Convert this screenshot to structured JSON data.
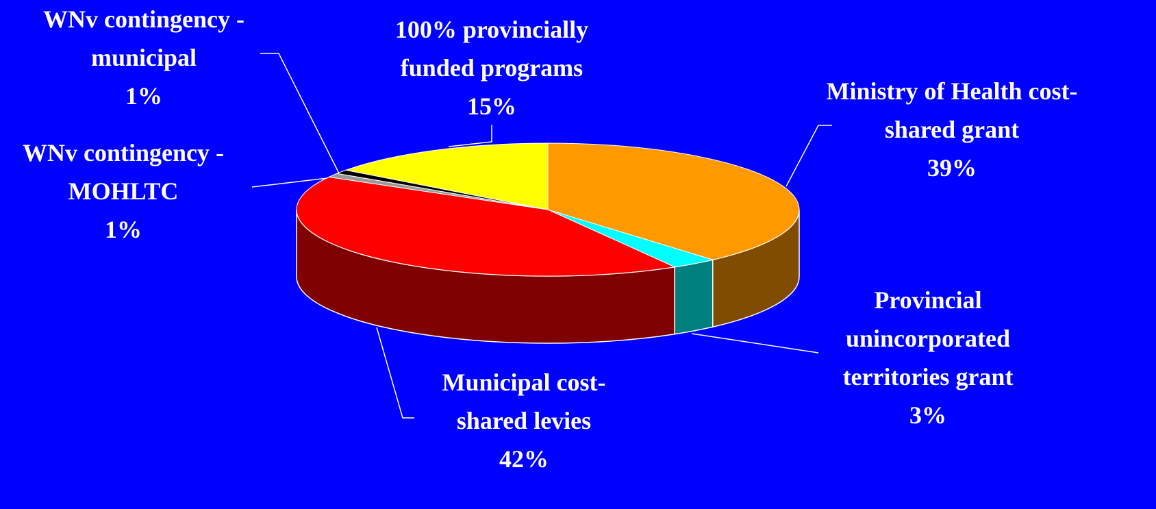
{
  "chart_data": {
    "type": "pie",
    "categories": [
      "Ministry of Health cost-shared grant",
      "Provincial unincorporated territories grant",
      "Municipal cost-shared levies",
      "WNv contingency - MOHLTC",
      "WNv contingency - municipal",
      "100% provincially funded programs"
    ],
    "values": [
      39,
      3,
      42,
      1,
      1,
      15
    ],
    "value_labels": [
      "39%",
      "3%",
      "42%",
      "1%",
      "1%",
      "15%"
    ],
    "colors": [
      "#ff9900",
      "#00ffff",
      "#ff0000",
      "#999999",
      "#000000",
      "#ffff00"
    ],
    "background": "#0000ff"
  }
}
